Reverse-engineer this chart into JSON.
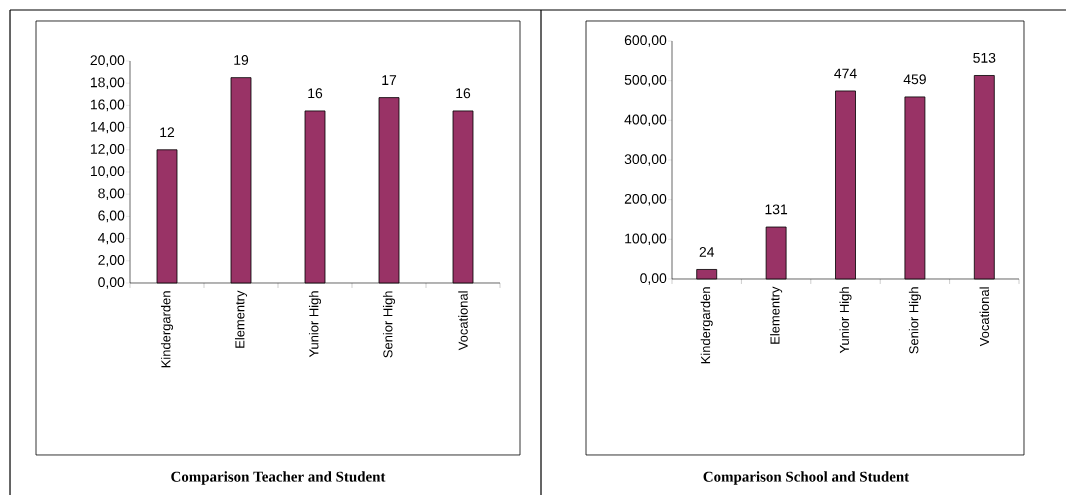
{
  "chart_data": [
    {
      "type": "bar",
      "title": "Comparison Teacher and Student",
      "categories": [
        "Kindergarden",
        "Elementry",
        "Yunior High",
        "Senior High",
        "Vocational"
      ],
      "values": [
        12.0,
        18.5,
        15.5,
        16.7,
        15.5
      ],
      "value_labels": [
        "12",
        "19",
        "16",
        "17",
        "16"
      ],
      "color": "#993366",
      "ylim": [
        0,
        20
      ],
      "yticks": [
        {
          "value": 0,
          "label": "0,00"
        },
        {
          "value": 2,
          "label": "2,00"
        },
        {
          "value": 4,
          "label": "4,00"
        },
        {
          "value": 6,
          "label": "6,00"
        },
        {
          "value": 8,
          "label": "8,00"
        },
        {
          "value": 10,
          "label": "10,00"
        },
        {
          "value": 12,
          "label": "12,00"
        },
        {
          "value": 14,
          "label": "14,00"
        },
        {
          "value": 16,
          "label": "16,00"
        },
        {
          "value": 18,
          "label": "18,00"
        },
        {
          "value": 20,
          "label": "20,00"
        }
      ]
    },
    {
      "type": "bar",
      "title": "Comparison School and Student",
      "categories": [
        "Kindergarden",
        "Elementry",
        "Yunior High",
        "Senior High",
        "Vocational"
      ],
      "values": [
        24,
        131,
        474,
        459,
        513
      ],
      "data_labels": true,
      "color": "#993366",
      "ylim": [
        0,
        600
      ],
      "yticks": [
        {
          "value": 0,
          "label": "0,00"
        },
        {
          "value": 100,
          "label": "100,00"
        },
        {
          "value": 200,
          "label": "200,00"
        },
        {
          "value": 300,
          "label": "300,00"
        },
        {
          "value": 400,
          "label": "400,00"
        },
        {
          "value": 500,
          "label": "500,00"
        },
        {
          "value": 600,
          "label": "600,00"
        }
      ]
    }
  ]
}
